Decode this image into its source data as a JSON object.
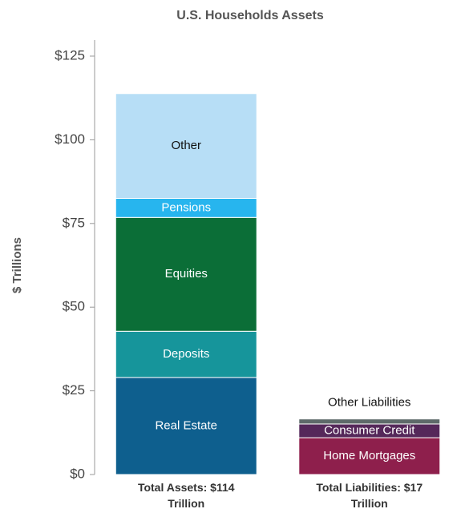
{
  "chart_data": {
    "type": "stacked_bar",
    "title": "U.S. Households Assets",
    "y_label": "$ Trillions",
    "categories": [
      "Total Assets: $114 Trillion",
      "Total Liabilities: $17 Trillion"
    ],
    "series": [
      {
        "name": "Real Estate",
        "color": "#0e5f8e",
        "values": [
          29,
          null
        ]
      },
      {
        "name": "Deposits",
        "color": "#16959b",
        "values": [
          13.8,
          null
        ]
      },
      {
        "name": "Equities",
        "color": "#0b6e37",
        "values": [
          34,
          null
        ]
      },
      {
        "name": "Pensions",
        "color": "#27b5ee",
        "values": [
          5.7,
          null
        ]
      },
      {
        "name": "Other",
        "color": "#b7def6",
        "values": [
          31.3,
          null
        ]
      },
      {
        "name": "Home Mortgages",
        "color": "#8e1f4c",
        "values": [
          null,
          11
        ]
      },
      {
        "name": "Consumer Credit",
        "color": "#55285a",
        "values": [
          null,
          4.1
        ]
      },
      {
        "name": "Other Liabilities",
        "color": "#5e6a6a",
        "values": [
          null,
          1.5
        ]
      }
    ],
    "ylim": [
      0,
      125
    ],
    "yticks": [
      {
        "value": 0,
        "label": "$0"
      },
      {
        "value": 25,
        "label": "$25"
      },
      {
        "value": 50,
        "label": "$50"
      },
      {
        "value": 75,
        "label": "$75"
      },
      {
        "value": 100,
        "label": "$100"
      },
      {
        "value": 125,
        "label": "$125"
      }
    ]
  }
}
